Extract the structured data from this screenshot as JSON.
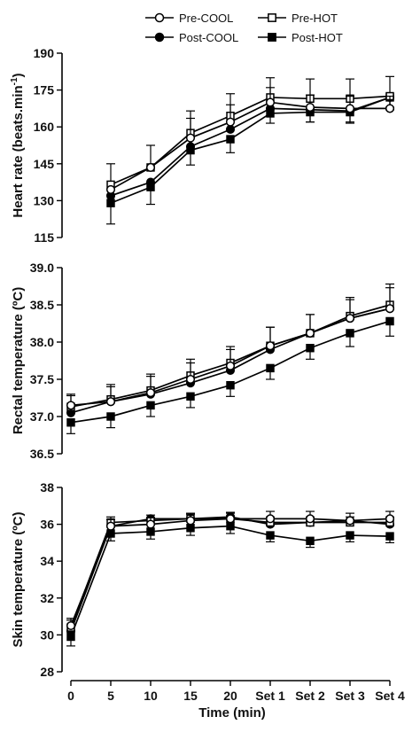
{
  "chart_data": {
    "type": "line",
    "x_categories": [
      "0",
      "5",
      "10",
      "15",
      "20",
      "Set 1",
      "Set 2",
      "Set 3",
      "Set 4"
    ],
    "xlabel": "Time (min)",
    "legend": {
      "placement": "top",
      "entries": [
        {
          "label": "Pre-COOL",
          "marker": "open-circle"
        },
        {
          "label": "Pre-HOT",
          "marker": "open-square"
        },
        {
          "label": "Post-COOL",
          "marker": "filled-circle"
        },
        {
          "label": "Post-HOT",
          "marker": "filled-square"
        }
      ]
    },
    "panels": [
      {
        "ylabel_main": "Heart rate (beats.min",
        "ylabel_sup": "-1",
        "ylabel_end": ")",
        "ylim": [
          115,
          190
        ],
        "yticks": [
          "115",
          "130",
          "145",
          "160",
          "175",
          "190"
        ],
        "ytick_values": [
          115,
          130,
          145,
          160,
          175,
          190
        ],
        "x_start_index": 1,
        "series": [
          {
            "name": "Pre-COOL",
            "values": [
              134.5,
              143.5,
              155.5,
              162,
              170,
              168,
              167.5,
              167.5
            ],
            "errors": [
              null,
              null,
              8,
              7,
              6,
              5,
              5,
              5
            ]
          },
          {
            "name": "Pre-HOT",
            "values": [
              136.5,
              143.5,
              157.5,
              164.5,
              172,
              171.5,
              171.5,
              172.5
            ],
            "errors": [
              8.5,
              9,
              9,
              9,
              8,
              8,
              8,
              8
            ]
          },
          {
            "name": "Post-COOL",
            "values": [
              132,
              137.5,
              152,
              159,
              167.5,
              167,
              166.5,
              172
            ],
            "errors": [
              null,
              null,
              null,
              null,
              null,
              5,
              5,
              5
            ]
          },
          {
            "name": "Post-HOT",
            "values": [
              129,
              135.5,
              150.5,
              155,
              165.5,
              166,
              166,
              172
            ],
            "errors": [
              8.5,
              7,
              6,
              5.5,
              4,
              4,
              4,
              4
            ]
          }
        ]
      },
      {
        "ylabel_main": "Rectal temperature (ºC)",
        "ylim": [
          36.5,
          39.0
        ],
        "yticks": [
          "36.5",
          "37.0",
          "37.5",
          "38.0",
          "38.5",
          "39.0"
        ],
        "ytick_values": [
          36.5,
          37.0,
          37.5,
          38.0,
          38.5,
          39.0
        ],
        "x_start_index": 0,
        "series": [
          {
            "name": "Pre-COOL",
            "values": [
              37.15,
              37.2,
              37.32,
              37.5,
              37.68,
              37.95,
              38.12,
              38.32,
              38.45
            ],
            "errors": [
              0.15,
              0.2,
              0.22,
              0.22,
              0.22,
              0.25,
              0.25,
              0.25,
              0.28
            ]
          },
          {
            "name": "Pre-HOT",
            "values": [
              37.13,
              37.23,
              37.35,
              37.55,
              37.72,
              37.95,
              38.12,
              38.35,
              38.5
            ],
            "errors": [
              0.15,
              0.2,
              0.22,
              0.22,
              0.22,
              0.25,
              0.25,
              0.25,
              0.28
            ]
          },
          {
            "name": "Post-COOL",
            "values": [
              37.05,
              37.2,
              37.3,
              37.45,
              37.62,
              37.9,
              38.12,
              38.32,
              38.45
            ],
            "errors": [
              null,
              null,
              null,
              null,
              null,
              null,
              null,
              null,
              null
            ]
          },
          {
            "name": "Post-HOT",
            "values": [
              36.92,
              37.0,
              37.15,
              37.27,
              37.42,
              37.65,
              37.92,
              38.12,
              38.28
            ],
            "errors": [
              0.15,
              0.15,
              0.15,
              0.15,
              0.15,
              0.15,
              0.15,
              0.18,
              0.2
            ]
          }
        ]
      },
      {
        "ylabel_main": "Skin temperature (ºC)",
        "ylim": [
          28,
          38
        ],
        "yticks": [
          "28",
          "30",
          "32",
          "34",
          "36",
          "38"
        ],
        "ytick_values": [
          28,
          30,
          32,
          34,
          36,
          38
        ],
        "x_start_index": 0,
        "series": [
          {
            "name": "Pre-COOL",
            "values": [
              30.5,
              35.9,
              36.0,
              36.2,
              36.3,
              36.3,
              36.3,
              36.2,
              36.3
            ],
            "errors": [
              0.4,
              0.35,
              0.35,
              0.35,
              0.35,
              0.4,
              0.4,
              0.4,
              0.4
            ]
          },
          {
            "name": "Pre-HOT",
            "values": [
              30.4,
              36.1,
              36.2,
              36.3,
              36.3,
              36.1,
              36.1,
              36.1,
              36.1
            ],
            "errors": [
              0.4,
              0.3,
              0.3,
              0.3,
              0.3,
              0.3,
              0.3,
              0.3,
              0.3
            ]
          },
          {
            "name": "Post-COOL",
            "values": [
              30.2,
              35.9,
              36.3,
              36.3,
              36.4,
              36.0,
              36.1,
              36.2,
              36.0
            ],
            "errors": [
              null,
              null,
              null,
              null,
              null,
              null,
              null,
              null,
              null
            ]
          },
          {
            "name": "Post-HOT",
            "values": [
              29.9,
              35.5,
              35.6,
              35.8,
              35.9,
              35.4,
              35.1,
              35.4,
              35.35
            ],
            "errors": [
              0.5,
              0.4,
              0.4,
              0.4,
              0.4,
              0.35,
              0.35,
              0.35,
              0.35
            ]
          }
        ]
      }
    ]
  }
}
